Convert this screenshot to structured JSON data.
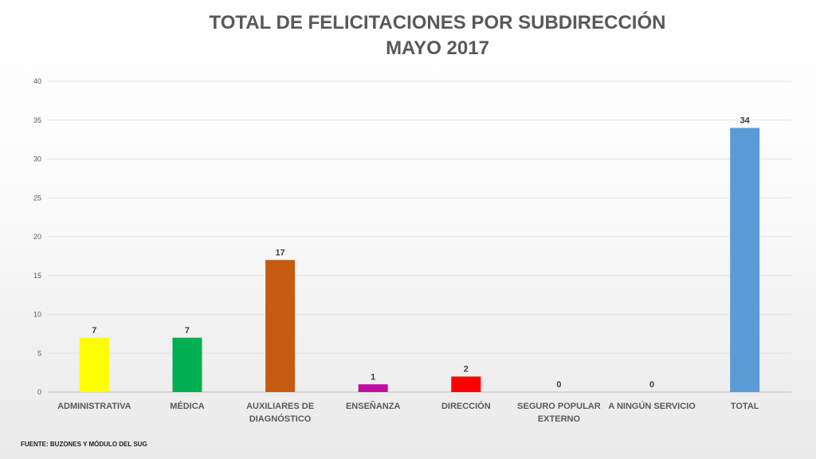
{
  "chart_data": {
    "type": "bar",
    "title_line1": "TOTAL DE FELICITACIONES POR SUBDIRECCIÓN",
    "title_line2": "MAYO 2017",
    "categories": [
      [
        "ADMINISTRATIVA"
      ],
      [
        "MÉDICA"
      ],
      [
        "AUXILIARES DE",
        "DIAGNÓSTICO"
      ],
      [
        "ENSEÑANZA"
      ],
      [
        "DIRECCIÓN"
      ],
      [
        "SEGURO POPULAR",
        "EXTERNO"
      ],
      [
        "A NINGÚN SERVICIO"
      ],
      [
        "TOTAL"
      ]
    ],
    "values": [
      7,
      7,
      17,
      1,
      2,
      0,
      0,
      34
    ],
    "value_labels": [
      "7",
      "7",
      "17",
      "1",
      "2",
      "0",
      "0",
      "34"
    ],
    "colors": [
      "#ffff00",
      "#00b050",
      "#c55a11",
      "#c00fa0",
      "#ff0000",
      "#a6a6a6",
      "#a6a6a6",
      "#5b9bd5"
    ],
    "ylim": [
      0,
      40
    ],
    "yticks": [
      "0",
      "5",
      "10",
      "15",
      "20",
      "25",
      "30",
      "35",
      "40"
    ],
    "grid": true,
    "xlabel": "",
    "ylabel": ""
  },
  "footer": {
    "source": "FUENTE: BUZONES Y MÓDULO DEL SUG"
  }
}
